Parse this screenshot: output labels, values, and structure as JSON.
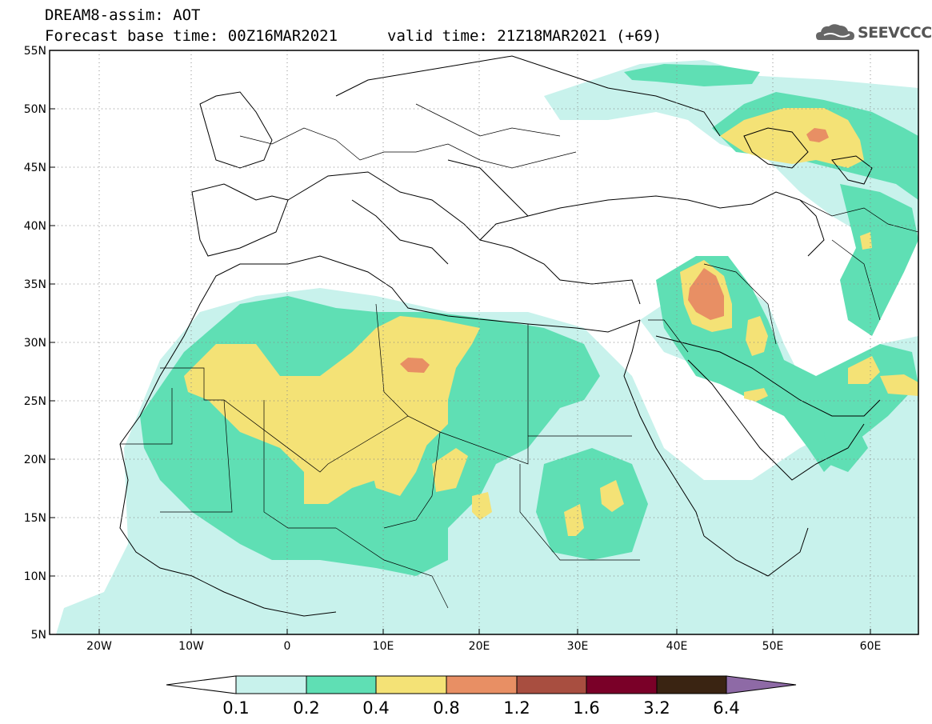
{
  "header": {
    "model": "DREAM8-assim: AOT",
    "base_time": "Forecast base time: 00Z16MAR2021",
    "valid_time": "valid time: 21Z18MAR2021 (+69)",
    "logo_text": "SEEVCCC"
  },
  "axes": {
    "lat_labels": [
      "55N",
      "50N",
      "45N",
      "40N",
      "35N",
      "30N",
      "25N",
      "20N",
      "15N",
      "10N",
      "5N"
    ],
    "lon_labels": [
      "20W",
      "10W",
      "0",
      "10E",
      "20E",
      "30E",
      "40E",
      "50E",
      "60E"
    ]
  },
  "colorbar": {
    "labels": [
      "0.1",
      "0.2",
      "0.4",
      "0.8",
      "1.2",
      "1.6",
      "3.2",
      "6.4"
    ],
    "colors": [
      "#c8f2ec",
      "#5fdfb4",
      "#f4e276",
      "#e88f64",
      "#a84e40",
      "#7a0028",
      "#3a2412",
      "#8e6aa6"
    ]
  },
  "icons": {
    "logo": "cloud-logo-icon"
  }
}
